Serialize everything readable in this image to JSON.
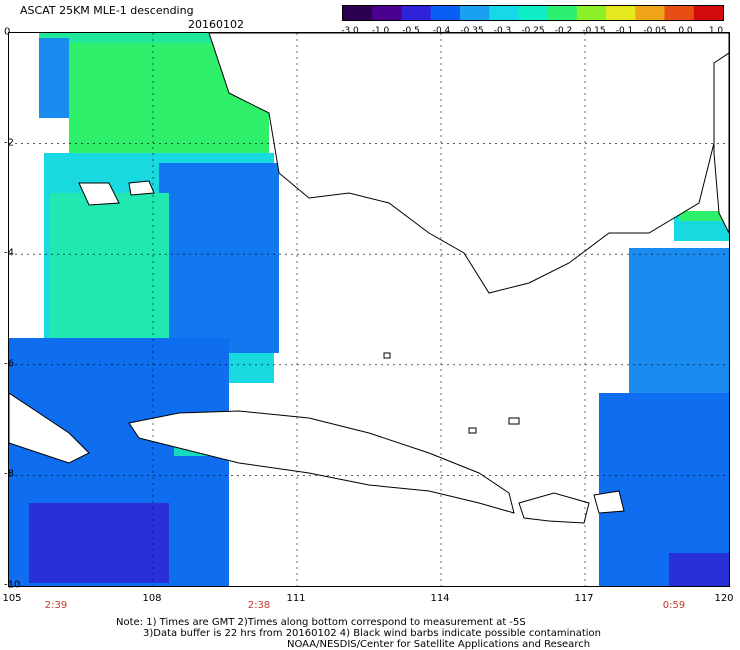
{
  "header": {
    "title": "ASCAT 25KM MLE-1 descending",
    "date": "20160102"
  },
  "colorbar": {
    "labels": [
      "-3.0",
      "-1.0",
      "-0.5",
      "-0.4",
      "-0.35",
      "-0.3",
      "-0.25",
      "-0.2",
      "-0.15",
      "-0.1",
      "-0.05",
      "0.0",
      "1.0"
    ],
    "colors": [
      "#2b0050",
      "#4b0090",
      "#2f22d8",
      "#0a5ef5",
      "#1aa0f0",
      "#17d8e8",
      "#10eec8",
      "#2cf070",
      "#8cf028",
      "#e6e81e",
      "#f0a418",
      "#e84e14",
      "#d20c0c"
    ]
  },
  "axes": {
    "lat_labels": [
      "0",
      "-2",
      "-4",
      "-6",
      "-8",
      "-10"
    ],
    "lon_labels": [
      "105",
      "108",
      "111",
      "114",
      "117",
      "120"
    ]
  },
  "pass_times": [
    "2:39",
    "2:38",
    "0:59"
  ],
  "notes": {
    "line1": "Note: 1) Times are GMT 2)Times along bottom correspond to measurement at -5S",
    "line2": "3)Data buffer is 22 hrs from 20160102 4) Black wind barbs indicate possible contamination",
    "credit": "NOAA/NESDIS/Center for Satellite Applications and Research"
  },
  "style_colors": {
    "land": "#ffffff",
    "coast": "#000000",
    "grid": "#000000",
    "time_label": "#c0392b"
  }
}
